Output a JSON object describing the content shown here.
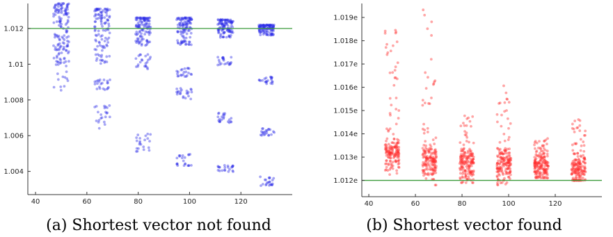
{
  "chart_data": [
    {
      "type": "scatter",
      "caption": "(a) Shortest vector not found",
      "xlabel": "",
      "ylabel": "",
      "xlim": [
        37,
        140
      ],
      "ylim": [
        1.0027,
        1.0134
      ],
      "xticks": [
        40,
        60,
        80,
        100,
        120
      ],
      "xtick_labels": [
        "40",
        "60",
        "80",
        "100",
        "120"
      ],
      "yticks": [
        1.004,
        1.006,
        1.008,
        1.01,
        1.012
      ],
      "ytick_labels": [
        "1.004",
        "1.006",
        "1.008",
        "1.01",
        "1.012"
      ],
      "reference_line": {
        "y": 1.012,
        "color": "#3a9a3a"
      },
      "point_color": "#2a2ae6",
      "grid": false,
      "clusters": [
        {
          "x": 50,
          "y_ranges": [
            [
              1.0085,
              1.0134
            ]
          ],
          "density": "high"
        },
        {
          "x": 66,
          "y_ranges": [
            [
              1.01,
              1.0131
            ],
            [
              1.0085,
              1.0092
            ],
            [
              1.0064,
              1.0077
            ]
          ]
        },
        {
          "x": 82,
          "y_ranges": [
            [
              1.011,
              1.0126
            ],
            [
              1.0097,
              1.0106
            ],
            [
              1.0051,
              1.0061
            ]
          ]
        },
        {
          "x": 98,
          "y_ranges": [
            [
              1.011,
              1.0126
            ],
            [
              1.0093,
              1.0098
            ],
            [
              1.008,
              1.0087
            ],
            [
              1.0043,
              1.005
            ]
          ]
        },
        {
          "x": 114,
          "y_ranges": [
            [
              1.0115,
              1.0125
            ],
            [
              1.0099,
              1.0104
            ],
            [
              1.0067,
              1.0073
            ],
            [
              1.0039,
              1.0044
            ]
          ]
        },
        {
          "x": 130,
          "y_ranges": [
            [
              1.0116,
              1.0122
            ],
            [
              1.0089,
              1.0093
            ],
            [
              1.006,
              1.0064
            ],
            [
              1.0032,
              1.0037
            ]
          ]
        }
      ]
    },
    {
      "type": "scatter",
      "caption": "(b) Shortest vector found",
      "xlabel": "",
      "ylabel": "",
      "xlim": [
        37,
        140
      ],
      "ylim": [
        1.0113,
        1.0196
      ],
      "xticks": [
        40,
        60,
        80,
        100,
        120
      ],
      "xtick_labels": [
        "40",
        "60",
        "80",
        "100",
        "120"
      ],
      "yticks": [
        1.012,
        1.013,
        1.014,
        1.015,
        1.016,
        1.017,
        1.018,
        1.019
      ],
      "ytick_labels": [
        "1.012e",
        "1.013e",
        "1.014e",
        "1.015e",
        "1.016e",
        "1.017e",
        "1.018e",
        "1.019e"
      ],
      "reference_line": {
        "y": 1.012,
        "color": "#3a9a3a"
      },
      "point_color": "#ff2a2a",
      "grid": false,
      "clusters": [
        {
          "x": 50,
          "y_ranges": [
            [
              1.0114,
              1.0185
            ]
          ],
          "center": 1.0131
        },
        {
          "x": 66,
          "y_ranges": [
            [
              1.0118,
              1.0194
            ]
          ],
          "center": 1.0128
        },
        {
          "x": 82,
          "y_ranges": [
            [
              1.0119,
              1.0149
            ]
          ],
          "center": 1.0127
        },
        {
          "x": 98,
          "y_ranges": [
            [
              1.0118,
              1.0163
            ]
          ],
          "center": 1.0127
        },
        {
          "x": 114,
          "y_ranges": [
            [
              1.0121,
              1.0138
            ]
          ],
          "center": 1.0126
        },
        {
          "x": 130,
          "y_ranges": [
            [
              1.012,
              1.0147
            ]
          ],
          "center": 1.0124
        }
      ]
    }
  ]
}
